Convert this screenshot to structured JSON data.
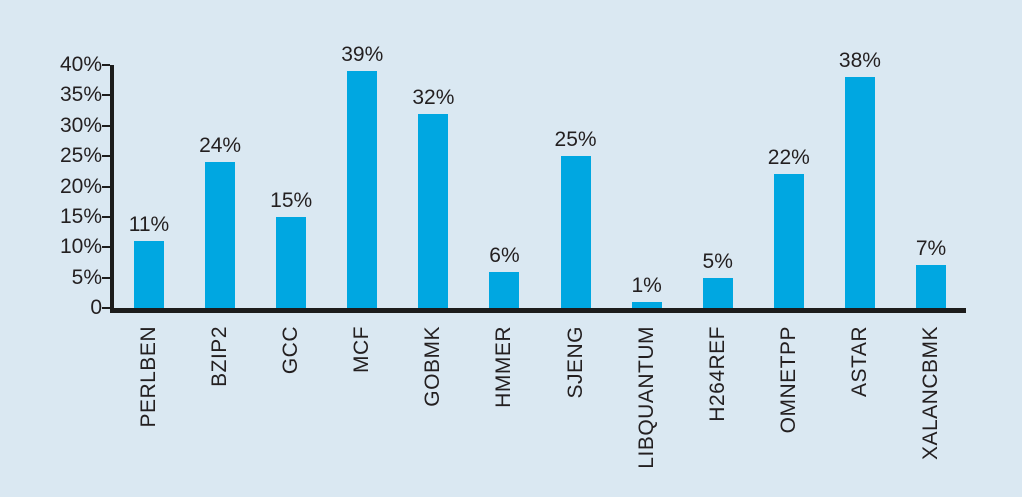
{
  "chart_data": {
    "type": "bar",
    "title": "",
    "xlabel": "",
    "ylabel": "",
    "categories": [
      "PERLBEN",
      "BZIP2",
      "GCC",
      "MCF",
      "GOBMK",
      "HMMER",
      "SJENG",
      "LIBQUANTUM",
      "H264REF",
      "OMNETPP",
      "ASTAR",
      "XALANCBMK"
    ],
    "values": [
      11,
      24,
      15,
      39,
      32,
      6,
      25,
      1,
      5,
      22,
      38,
      7
    ],
    "value_labels": [
      "11%",
      "24%",
      "15%",
      "39%",
      "32%",
      "6%",
      "25%",
      "1%",
      "5%",
      "22%",
      "38%",
      "7%"
    ],
    "y_ticks": [
      "40%",
      "35%",
      "30%",
      "25%",
      "20%",
      "15%",
      "10%",
      "5%",
      "0"
    ],
    "y_tick_values": [
      40,
      35,
      30,
      25,
      20,
      15,
      10,
      5,
      0
    ],
    "ylim": [
      0,
      40
    ],
    "grid": false,
    "legend": null,
    "colors": {
      "bar": "#00A7E1",
      "background": "#DAE8F2",
      "axis": "#1C1C1C",
      "text": "#231F20"
    }
  }
}
